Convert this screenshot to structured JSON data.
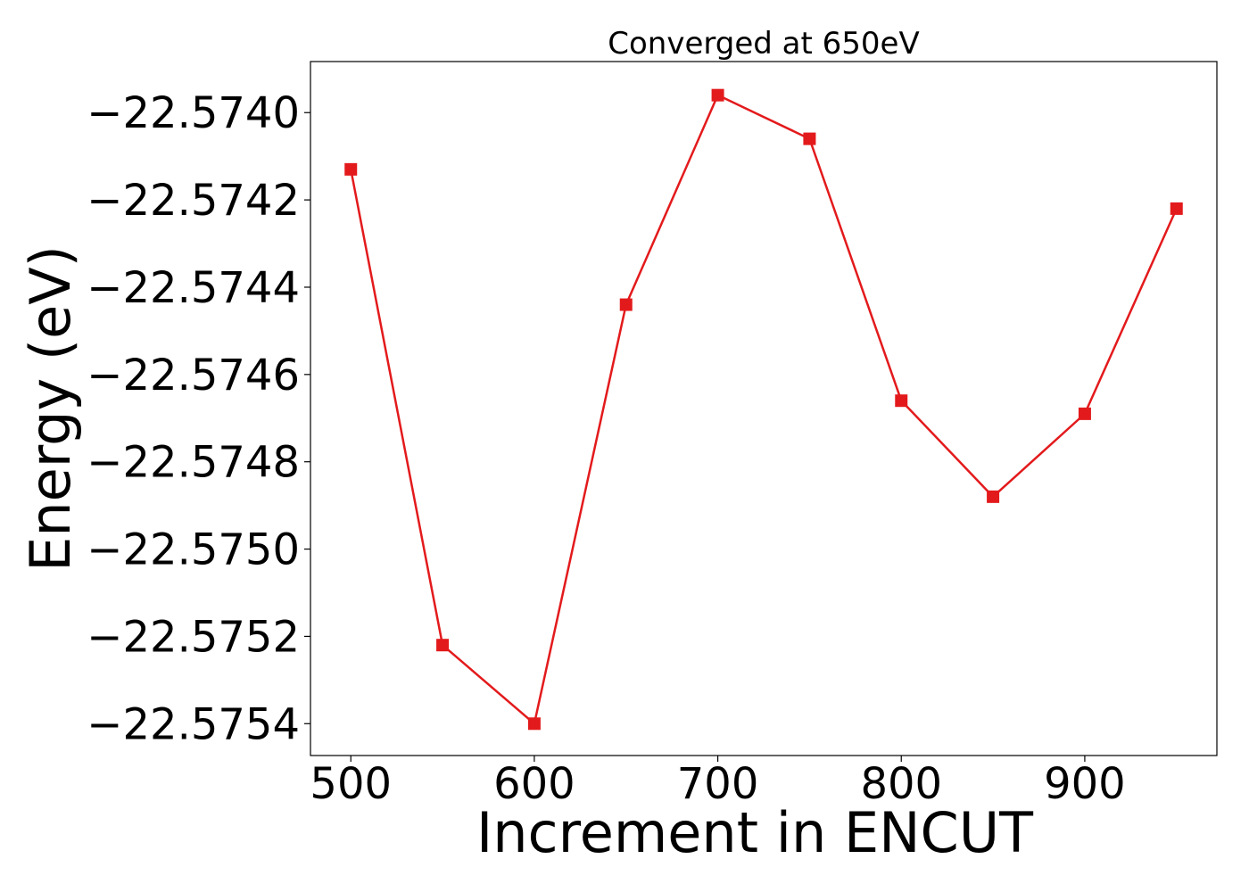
{
  "chart_data": {
    "type": "line",
    "title": "Converged at 650eV",
    "xlabel": "Increment in ENCUT",
    "ylabel": "Energy (eV)",
    "x": [
      500,
      550,
      600,
      650,
      700,
      750,
      800,
      850,
      900,
      950
    ],
    "series": [
      {
        "values": [
          -22.57413,
          -22.57522,
          -22.5754,
          -22.57444,
          -22.57396,
          -22.57406,
          -22.57466,
          -22.57488,
          -22.57469,
          -22.57422
        ],
        "color": "#e31a1c",
        "marker": "square"
      }
    ],
    "xlim": [
      478,
      972
    ],
    "ylim": [
      -22.575473,
      -22.573883
    ],
    "xticks": [
      500,
      600,
      700,
      800,
      900
    ],
    "xtick_labels": [
      "500",
      "600",
      "700",
      "800",
      "900"
    ],
    "yticks": [
      -22.574,
      -22.5742,
      -22.5744,
      -22.5746,
      -22.5748,
      -22.575,
      -22.5752,
      -22.5754
    ],
    "ytick_labels": [
      "−22.5740",
      "−22.5742",
      "−22.5744",
      "−22.5746",
      "−22.5748",
      "−22.5750",
      "−22.5752",
      "−22.5754"
    ],
    "grid": false,
    "legend": "none"
  }
}
